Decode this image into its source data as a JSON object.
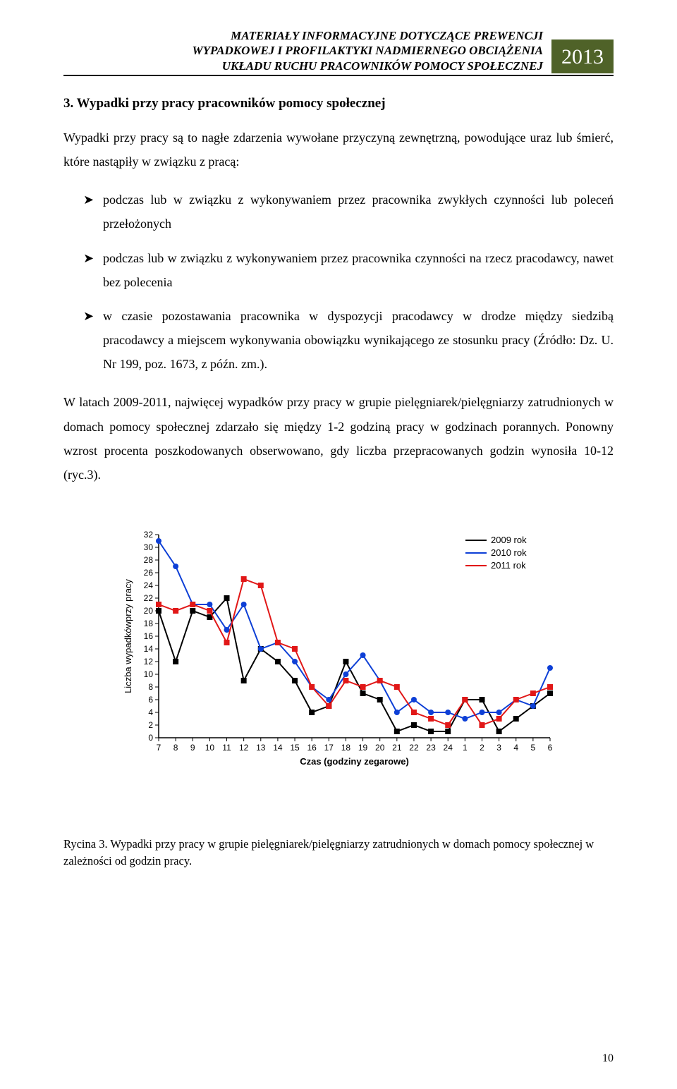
{
  "header": {
    "line1": "MATERIAŁY INFORMACYJNE DOTYCZĄCE PREWENCJI",
    "line2": "WYPADKOWEJ I PROFILAKTYKI NADMIERNEGO OBCIĄŻENIA",
    "line3": "UKŁADU RUCHU PRACOWNIKÓW POMOCY SPOŁECZNEJ",
    "year": "2013"
  },
  "section_title": "3. Wypadki przy pracy pracowników pomocy społecznej",
  "intro": "Wypadki przy pracy są to nagłe zdarzenia wywołane przyczyną zewnętrzną, powodujące uraz lub śmierć, które nastąpiły w związku z pracą:",
  "bullets": [
    "podczas lub w związku z wykonywaniem przez pracownika zwykłych czynności lub poleceń przełożonych",
    "podczas lub w związku z wykonywaniem przez pracownika czynności na rzecz pracodawcy, nawet bez polecenia",
    "w czasie pozostawania pracownika w dyspozycji pracodawcy w drodze między siedzibą pracodawcy a miejscem wykonywania obowiązku wynikającego ze stosunku pracy (Źródło: Dz. U. Nr 199, poz. 1673, z późn. zm.)."
  ],
  "para2": "W latach 2009-2011, najwięcej wypadków przy pracy w grupie pielęgniarek/pielęgniarzy zatrudnionych w domach pomocy społecznej zdarzało się między 1-2 godziną pracy  w godzinach porannych. Ponowny wzrost procenta poszkodowanych obserwowano, gdy liczba przepracowanych godzin wynosiła 10-12 (ryc.3).",
  "chart": {
    "type": "line",
    "ylabel": "Liczba wypadkówprzy pracy",
    "xlabel": "Czas (godziny zegarowe)",
    "label_fontsize": 13,
    "tick_fontsize": 12,
    "legend_fontsize": 13,
    "ylim": [
      0,
      32
    ],
    "ytick_step": 2,
    "x_categories": [
      "7",
      "8",
      "9",
      "10",
      "11",
      "12",
      "13",
      "14",
      "15",
      "16",
      "17",
      "18",
      "19",
      "20",
      "21",
      "22",
      "23",
      "24",
      "1",
      "2",
      "3",
      "4",
      "5",
      "6"
    ],
    "background_color": "#ffffff",
    "axis_color": "#000000",
    "series": [
      {
        "name": "2009 rok",
        "color": "#000000",
        "marker_color": "#000000",
        "marker_shape": "square",
        "values": [
          20,
          12,
          20,
          19,
          22,
          9,
          14,
          12,
          9,
          4,
          5,
          12,
          7,
          6,
          1,
          2,
          1,
          1,
          6,
          6,
          1,
          3,
          5,
          7
        ]
      },
      {
        "name": "2010 rok",
        "color": "#0d3fd6",
        "marker_color": "#0d3fd6",
        "marker_shape": "circle",
        "values": [
          31,
          27,
          21,
          21,
          17,
          21,
          14,
          15,
          12,
          8,
          6,
          10,
          13,
          9,
          4,
          6,
          4,
          4,
          3,
          4,
          4,
          6,
          5,
          11
        ]
      },
      {
        "name": "2011 rok",
        "color": "#e11717",
        "marker_color": "#e11717",
        "marker_shape": "square",
        "values": [
          21,
          20,
          21,
          20,
          15,
          25,
          24,
          15,
          14,
          8,
          5,
          9,
          8,
          9,
          8,
          4,
          3,
          2,
          6,
          2,
          3,
          6,
          7,
          8
        ]
      }
    ],
    "legend_position": "top-right",
    "line_width": 2,
    "marker_size": 4
  },
  "figure_caption": "Rycina 3. Wypadki przy pracy w grupie pielęgniarek/pielęgniarzy zatrudnionych w domach pomocy społecznej w zależności od godzin pracy.",
  "page_number": "10"
}
